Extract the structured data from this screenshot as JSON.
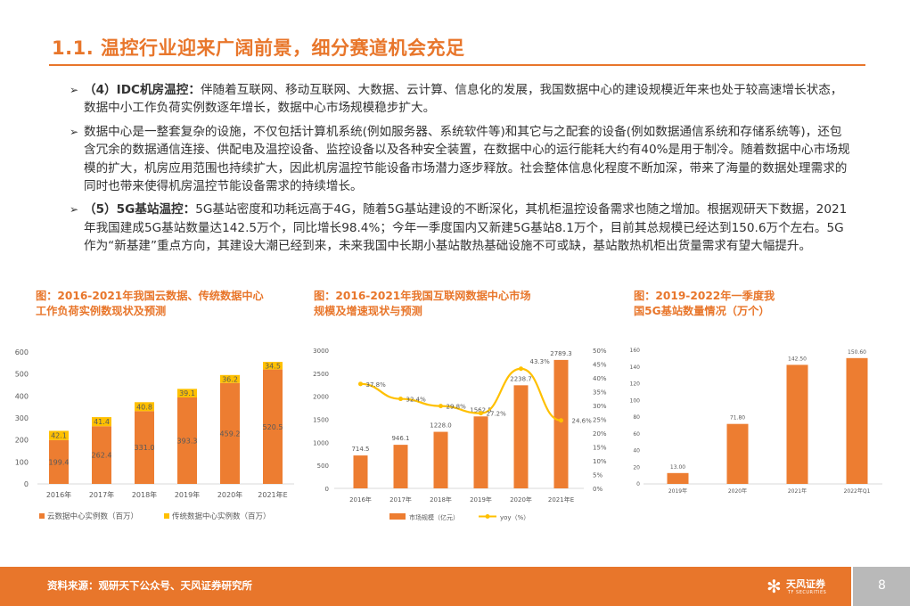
{
  "title": "1.1. 温控行业迎来广阔前景，细分赛道机会充足",
  "bullets": [
    {
      "lead": "（4）IDC机房温控：",
      "text": "伴随着互联网、移动互联网、大数据、云计算、信息化的发展，我国数据中心的建设规模近年来也处于较高速增长状态，数据中小工作负荷实例数逐年增长，数据中心市场规模稳步扩大。"
    },
    {
      "lead": "",
      "text": "数据中心是一整套复杂的设施，不仅包括计算机系统(例如服务器、系统软件等)和其它与之配套的设备(例如数据通信系统和存储系统等)，还包含冗余的数据通信连接、供配电及温控设备、监控设备以及各种安全装置，在数据中心的运行能耗大约有40%是用于制冷。随着数据中心市场规模的扩大，机房应用范围也持续扩大，因此机房温控节能设备市场潜力逐步释放。社会整体信息化程度不断加深，带来了海量的数据处理需求的同时也带来使得机房温控节能设备需求的持续增长。"
    },
    {
      "lead": "（5）5G基站温控：",
      "text": "5G基站密度和功耗远高于4G，随着5G基站建设的不断深化，其机柜温控设备需求也随之增加。根据观研天下数据，2021年我国建成5G基站数量达142.5万个，同比增长98.4%；今年一季度国内又新建5G基站8.1万个，目前其总规模已经达到150.6万个左右。5G作为“新基建”重点方向，其建设大潮已经到来，未来我国中长期小基站散热基础设施不可或缺，基站散热机柜出货量需求有望大幅提升。"
    }
  ],
  "captions": {
    "c1": "图：2016-2021年我国云数据、传统数据中心工作负荷实例数现状及预测",
    "c2": "图：2016-2021年我国互联网数据中心市场规模及增速现状与预测",
    "c3": "图：2019-2022年一季度我国5G基站数量情况（万个）"
  },
  "chart_data": [
    {
      "type": "bar",
      "stacked": true,
      "categories": [
        "2016年",
        "2017年",
        "2018年",
        "2019年",
        "2020年",
        "2021年E"
      ],
      "series": [
        {
          "name": "云数据中心实例数（百万）",
          "values": [
            199.4,
            262.4,
            331.0,
            393.3,
            459.2,
            520.5
          ],
          "labels": [
            "199.4",
            "262.4",
            "331.0",
            "393.3",
            "459.2",
            "520.5"
          ],
          "color": "#ed7d31"
        },
        {
          "name": "传统数据中心实例数（百万）",
          "values": [
            42.1,
            41.4,
            40.8,
            39.1,
            36.2,
            34.5
          ],
          "labels": [
            "42.1",
            "41.4",
            "40.8",
            "39.1",
            "36.2",
            "34.5"
          ],
          "color": "#ffc000"
        }
      ],
      "yticks": [
        "0",
        "100",
        "200",
        "300",
        "400",
        "500",
        "600"
      ],
      "ylim": [
        0,
        600
      ],
      "legend": "bottom"
    },
    {
      "type": "bar+line",
      "categories": [
        "2016年",
        "2017年",
        "2018年",
        "2019年",
        "2020年",
        "2021年E"
      ],
      "bar_series": {
        "name": "市场规模（亿元）",
        "values": [
          714.5,
          946.1,
          1228.0,
          1562.5,
          2238.7,
          2789.3
        ],
        "labels": [
          "714.5",
          "946.1",
          "1228.0",
          "1562.5",
          "2238.7",
          "2789.3"
        ],
        "color": "#ed7d31"
      },
      "line_series": {
        "name": "yoy（%）",
        "values": [
          37.8,
          32.4,
          29.8,
          27.2,
          43.3,
          24.6
        ],
        "labels": [
          "37.8%",
          "32.4%",
          "29.8%",
          "27.2%",
          "43.3%",
          "24.6%"
        ],
        "color": "#ffc000"
      },
      "yticks": [
        "0",
        "500",
        "1000",
        "1500",
        "2000",
        "2500",
        "3000"
      ],
      "ylim": [
        0,
        3000
      ],
      "y2ticks": [
        "0%",
        "5%",
        "10%",
        "15%",
        "20%",
        "25%",
        "30%",
        "35%",
        "40%",
        "45%",
        "50%"
      ],
      "y2lim": [
        0,
        50
      ],
      "legend": "bottom"
    },
    {
      "type": "bar",
      "categories": [
        "2019年",
        "2020年",
        "2021年",
        "2022年Q1"
      ],
      "values": [
        13.0,
        71.8,
        142.5,
        150.6
      ],
      "labels": [
        "13.00",
        "71.80",
        "142.50",
        "150.60"
      ],
      "color": "#ed7d31",
      "yticks": [
        "0",
        "20",
        "40",
        "60",
        "80",
        "100",
        "120",
        "140",
        "160"
      ],
      "ylim": [
        0,
        160
      ]
    }
  ],
  "footer": {
    "source": "资料来源：观研天下公众号、天风证券研究所",
    "logo_cn": "天风证券",
    "logo_en": "TF SECURITIES",
    "page": "8"
  }
}
